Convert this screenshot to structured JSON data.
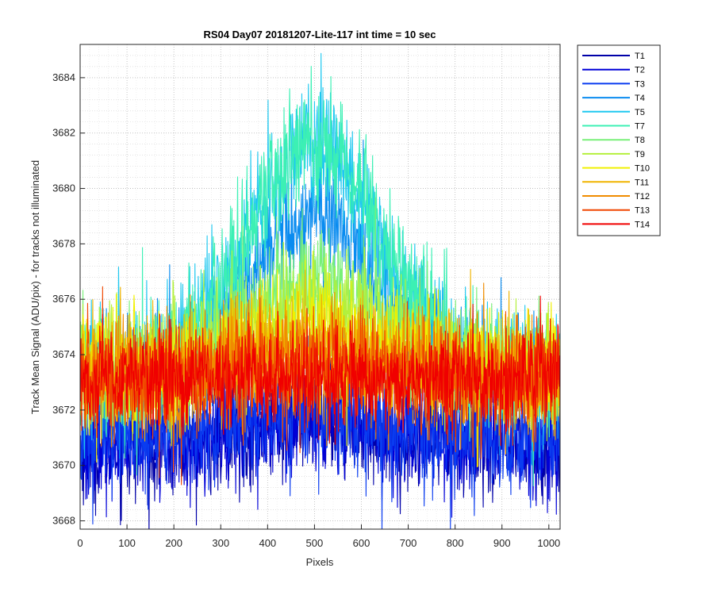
{
  "chart_data": {
    "type": "line",
    "title": "RS04 Day07 20181207-Lite-117 int time = 10 sec",
    "xlabel": "Pixels",
    "ylabel": "Track Mean Signal (ADU/pix) - for tracks not illuminated",
    "xlim": [
      0,
      1024
    ],
    "ylim": [
      3667.7,
      3685.2
    ],
    "x_ticks": [
      0,
      100,
      200,
      300,
      400,
      500,
      600,
      700,
      800,
      900,
      1000
    ],
    "x_tick_labels": [
      "0",
      "100",
      "200",
      "300",
      "400",
      "500",
      "600",
      "700",
      "800",
      "900",
      "1000"
    ],
    "y_ticks": [
      3668,
      3670,
      3672,
      3674,
      3676,
      3678,
      3680,
      3682,
      3684
    ],
    "y_tick_labels": [
      "3668",
      "3670",
      "3672",
      "3674",
      "3676",
      "3678",
      "3680",
      "3682",
      "3684"
    ],
    "grid": "major and minor, dotted",
    "legend_position": "outside-top-right",
    "x_range": [
      1,
      1024
    ],
    "series": [
      {
        "name": "T1",
        "color": "#0000a8",
        "baseline": 3670.7,
        "peak": 1.0,
        "noise": 1.0
      },
      {
        "name": "T2",
        "color": "#0000d8",
        "baseline": 3670.8,
        "peak": 1.0,
        "noise": 1.0
      },
      {
        "name": "T3",
        "color": "#0a3cf0",
        "baseline": 3671.0,
        "peak": 1.0,
        "noise": 1.0
      },
      {
        "name": "T4",
        "color": "#0a8cf0",
        "baseline": 3673.0,
        "peak": 6.0,
        "noise": 1.1
      },
      {
        "name": "T5",
        "color": "#1ec8f0",
        "baseline": 3673.3,
        "peak": 8.3,
        "noise": 1.1
      },
      {
        "name": "T7",
        "color": "#3cf0b4",
        "baseline": 3673.3,
        "peak": 8.4,
        "noise": 1.1
      },
      {
        "name": "T8",
        "color": "#78f078",
        "baseline": 3673.5,
        "peak": 3.2,
        "noise": 1.0
      },
      {
        "name": "T9",
        "color": "#b4f03c",
        "baseline": 3673.5,
        "peak": 2.3,
        "noise": 1.0
      },
      {
        "name": "T10",
        "color": "#f0f000",
        "baseline": 3673.4,
        "peak": 1.6,
        "noise": 1.0
      },
      {
        "name": "T11",
        "color": "#f0b400",
        "baseline": 3673.3,
        "peak": 1.0,
        "noise": 1.0
      },
      {
        "name": "T12",
        "color": "#f08c00",
        "baseline": 3673.2,
        "peak": 0.6,
        "noise": 1.0
      },
      {
        "name": "T13",
        "color": "#f04600",
        "baseline": 3673.1,
        "peak": 0.3,
        "noise": 1.0
      },
      {
        "name": "T14",
        "color": "#f00000",
        "baseline": 3673.1,
        "peak": 0.2,
        "noise": 0.9
      }
    ]
  }
}
